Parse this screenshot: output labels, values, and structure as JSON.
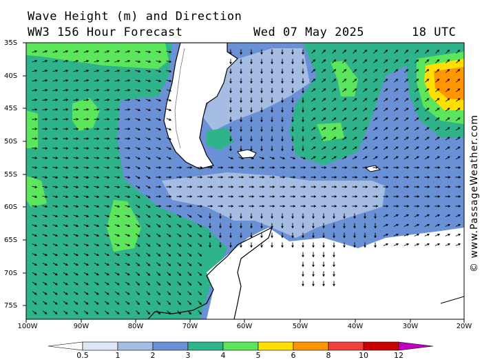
{
  "header": {
    "title_line1": "Wave Height (m) and Direction",
    "title_line2": "WW3 156 Hour Forecast",
    "date": "Wed 07 May 2025",
    "time": "18 UTC"
  },
  "credit": "© www.PassageWeather.com",
  "axes": {
    "lat_labels": [
      "35S",
      "40S",
      "45S",
      "50S",
      "55S",
      "60S",
      "65S",
      "70S",
      "75S"
    ],
    "lon_labels": [
      "100W",
      "90W",
      "80W",
      "70W",
      "60W",
      "50W",
      "40W",
      "30W",
      "20W"
    ]
  },
  "legend": {
    "tick_labels": [
      "0.5",
      "1",
      "2",
      "3",
      "4",
      "5",
      "6",
      "8",
      "10",
      "12"
    ],
    "colors": [
      "#dfe6f5",
      "#a6bde3",
      "#6a90d6",
      "#2fb38a",
      "#5ce65c",
      "#ffdf00",
      "#ff9500",
      "#f04040",
      "#c80000",
      "#c000c0"
    ]
  },
  "map_colors": {
    "land": "#ffffff",
    "ice": "#ffffff",
    "coast": "#000000",
    "arrow": "#000000"
  }
}
